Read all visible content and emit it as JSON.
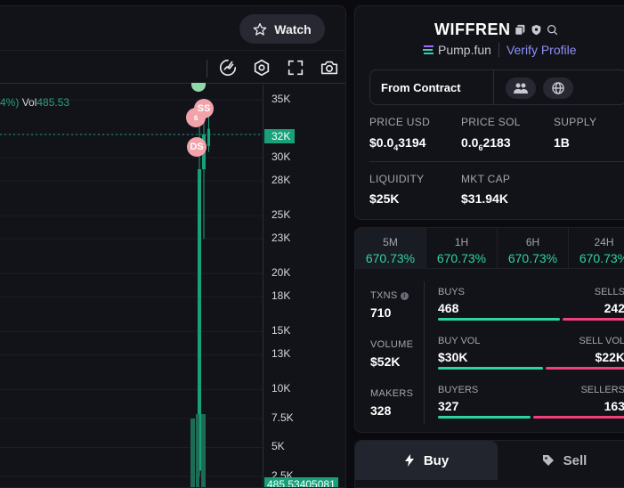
{
  "chart": {
    "watch_label": "Watch",
    "legend_prefix": "4%)",
    "legend_vol_label": "Vol",
    "legend_vol_value": "485.53",
    "price_tag": "32K",
    "vol_tag": "485.53405081",
    "markers": [
      "SS",
      "DS"
    ],
    "y_ticks": [
      "35K",
      "32K",
      "30K",
      "28K",
      "25K",
      "23K",
      "20K",
      "18K",
      "15K",
      "13K",
      "10K",
      "7.5K",
      "5K",
      "2.5K"
    ]
  },
  "chart_data": {
    "type": "candlestick",
    "ylim": [
      2500,
      35000
    ],
    "current_price": 32000,
    "current_volume": 485.53405081,
    "candles": [
      {
        "open": 3000,
        "close": 29000,
        "high": 33000,
        "low": 2500,
        "color": "#18a07a"
      },
      {
        "open": 29000,
        "close": 32000,
        "high": 33000,
        "low": 23000,
        "color": "#18a07a"
      },
      {
        "open": 31000,
        "close": 32500,
        "high": 33500,
        "low": 30500,
        "color": "#18a07a"
      }
    ]
  },
  "token": {
    "name": "WIFFREN",
    "platform": "Pump.fun",
    "verify_label": "Verify Profile",
    "contract_label": "From Contract"
  },
  "stats": {
    "price_usd_label": "PRICE USD",
    "price_usd_value": "$0.0",
    "price_usd_sub": "4",
    "price_usd_tail": "3194",
    "price_sol_label": "PRICE SOL",
    "price_sol_value": "0.0",
    "price_sol_sub": "6",
    "price_sol_tail": "2183",
    "supply_label": "SUPPLY",
    "supply_value": "1B",
    "liquidity_label": "LIQUIDITY",
    "liquidity_value": "$25K",
    "mktcap_label": "MKT CAP",
    "mktcap_value": "$31.94K"
  },
  "timeframes": [
    {
      "label": "5M",
      "value": "670.73%"
    },
    {
      "label": "1H",
      "value": "670.73%"
    },
    {
      "label": "6H",
      "value": "670.73%"
    },
    {
      "label": "24H",
      "value": "670.73%"
    }
  ],
  "txns": {
    "txns_label": "TXNS",
    "txns_value": "710",
    "volume_label": "VOLUME",
    "volume_value": "$52K",
    "makers_label": "MAKERS",
    "makers_value": "328",
    "buys_label": "BUYS",
    "buys_value": "468",
    "sells_label": "SELLS",
    "sells_value": "242",
    "buy_vol_label": "BUY VOL",
    "buy_vol_value": "$30K",
    "sell_vol_label": "SELL VOL",
    "sell_vol_value": "$22K",
    "buyers_label": "BUYERS",
    "buyers_value": "327",
    "sellers_label": "SELLERS",
    "sellers_value": "163"
  },
  "trade": {
    "buy_label": "Buy",
    "sell_label": "Sell"
  },
  "colors": {
    "accent_green": "#2ed3a4",
    "accent_red": "#f0417a",
    "link": "#8c8ff5",
    "candle_green": "#18a07a"
  }
}
